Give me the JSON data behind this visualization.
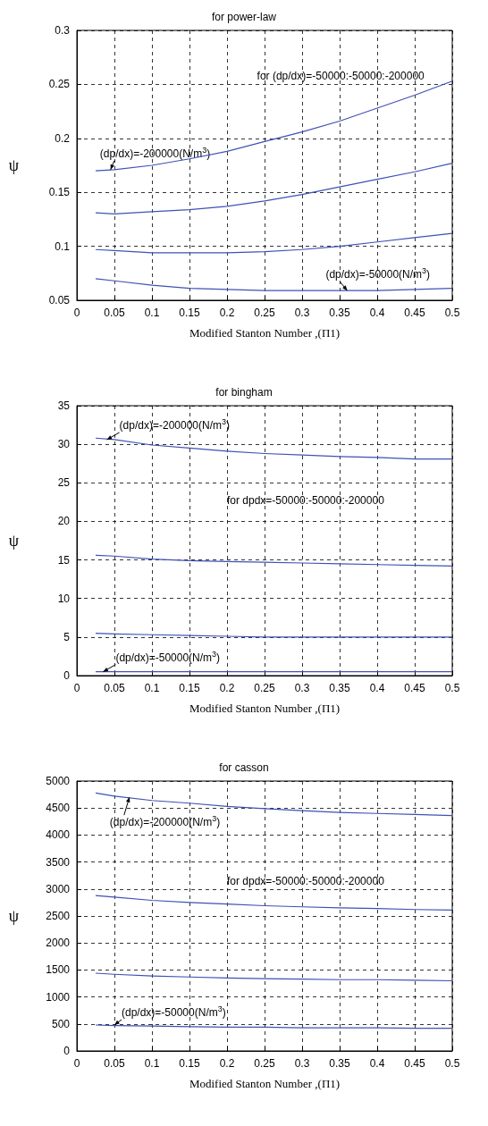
{
  "chart_data": [
    {
      "type": "line",
      "title": "for power-law",
      "xlabel": "Modified Stanton Number ,(Π1)",
      "ylabel": "ψ",
      "x": [
        0.025,
        0.05,
        0.1,
        0.15,
        0.2,
        0.25,
        0.3,
        0.35,
        0.4,
        0.45,
        0.5
      ],
      "xlim": [
        0,
        0.5
      ],
      "xticks": [
        0,
        0.05,
        0.1,
        0.15,
        0.2,
        0.25,
        0.3,
        0.35,
        0.4,
        0.45,
        0.5
      ],
      "ylim": [
        0.05,
        0.3
      ],
      "yticks": [
        0.05,
        0.1,
        0.15,
        0.2,
        0.25,
        0.3
      ],
      "grid": true,
      "line_style": "solid",
      "marker": "none",
      "series": [
        {
          "color": "#3f51b5",
          "values": [
            0.17,
            0.171,
            0.175,
            0.181,
            0.188,
            0.197,
            0.206,
            0.216,
            0.228,
            0.24,
            0.253
          ]
        },
        {
          "color": "#3f51b5",
          "values": [
            0.131,
            0.13,
            0.132,
            0.134,
            0.137,
            0.142,
            0.148,
            0.155,
            0.162,
            0.169,
            0.177
          ]
        },
        {
          "color": "#3f51b5",
          "values": [
            0.097,
            0.096,
            0.094,
            0.094,
            0.094,
            0.095,
            0.097,
            0.1,
            0.104,
            0.108,
            0.112
          ]
        },
        {
          "color": "#3f51b5",
          "values": [
            0.07,
            0.068,
            0.064,
            0.061,
            0.06,
            0.059,
            0.059,
            0.059,
            0.059,
            0.06,
            0.061
          ]
        }
      ],
      "annotations": [
        "for (dp/dx)=-50000:-50000:-200000",
        {
          "text": "(dp/dx)=-200000(N/m$^{3}$)",
          "x": 0.045,
          "y": 0.171
        },
        {
          "text": "(dp/dx)=-50000(N/m$^{3}$)",
          "x": 0.36,
          "y": 0.059
        }
      ]
    },
    {
      "type": "line",
      "title": "for bingham",
      "xlabel": "Modified Stanton Number ,(Π1)",
      "ylabel": "ψ",
      "x": [
        0.025,
        0.05,
        0.1,
        0.15,
        0.2,
        0.25,
        0.3,
        0.35,
        0.4,
        0.45,
        0.5
      ],
      "xlim": [
        0,
        0.5
      ],
      "xticks": [
        0,
        0.05,
        0.1,
        0.15,
        0.2,
        0.25,
        0.3,
        0.35,
        0.4,
        0.45,
        0.5
      ],
      "ylim": [
        0,
        35
      ],
      "yticks": [
        0,
        5,
        10,
        15,
        20,
        25,
        30,
        35
      ],
      "grid": true,
      "line_style": "solid",
      "marker": "none",
      "series": [
        {
          "color": "#3f51b5",
          "values": [
            30.8,
            30.6,
            29.9,
            29.5,
            29.1,
            28.8,
            28.6,
            28.4,
            28.3,
            28.1,
            28.1
          ]
        },
        {
          "color": "#3f51b5",
          "values": [
            15.6,
            15.5,
            15.1,
            14.9,
            14.8,
            14.7,
            14.6,
            14.5,
            14.4,
            14.3,
            14.2
          ]
        },
        {
          "color": "#3f51b5",
          "values": [
            5.5,
            5.4,
            5.3,
            5.2,
            5.1,
            5.0,
            5.0,
            5.0,
            5.0,
            5.0,
            5.0
          ]
        },
        {
          "color": "#3f51b5",
          "values": [
            0.5,
            0.5,
            0.5,
            0.5,
            0.5,
            0.5,
            0.5,
            0.5,
            0.5,
            0.5,
            0.5
          ]
        }
      ],
      "annotations": [
        "for dpdx=-50000:-50000:-200000",
        {
          "text": "(dp/dx)=-200000(N/m$^{3}$)",
          "x": 0.04,
          "y": 30.6
        },
        {
          "text": "(dp/dx)=-50000(N/m$^{3}$)",
          "x": 0.035,
          "y": 0.5
        }
      ]
    },
    {
      "type": "line",
      "title": "for casson",
      "xlabel": "Modified Stanton Number ,(Π1)",
      "ylabel": "ψ",
      "x": [
        0.025,
        0.05,
        0.1,
        0.15,
        0.2,
        0.25,
        0.3,
        0.35,
        0.4,
        0.45,
        0.5
      ],
      "xlim": [
        0,
        0.5
      ],
      "xticks": [
        0,
        0.05,
        0.1,
        0.15,
        0.2,
        0.25,
        0.3,
        0.35,
        0.4,
        0.45,
        0.5
      ],
      "ylim": [
        0,
        5000
      ],
      "yticks": [
        0,
        500,
        1000,
        1500,
        2000,
        2500,
        3000,
        3500,
        4000,
        4500,
        5000
      ],
      "grid": true,
      "line_style": "solid",
      "marker": "none",
      "series": [
        {
          "color": "#3f51b5",
          "values": [
            4780,
            4720,
            4640,
            4590,
            4530,
            4490,
            4450,
            4420,
            4400,
            4380,
            4360
          ]
        },
        {
          "color": "#3f51b5",
          "values": [
            2880,
            2850,
            2790,
            2750,
            2720,
            2690,
            2670,
            2650,
            2640,
            2620,
            2610
          ]
        },
        {
          "color": "#3f51b5",
          "values": [
            1440,
            1420,
            1390,
            1370,
            1350,
            1340,
            1330,
            1320,
            1320,
            1310,
            1300
          ]
        },
        {
          "color": "#3f51b5",
          "values": [
            480,
            470,
            460,
            450,
            440,
            440,
            430,
            430,
            430,
            420,
            420
          ]
        }
      ],
      "annotations": [
        "for dpdx=-50000:-50000:-200000",
        {
          "text": "(dp/dx)=-200000(N/m$^{3}$)",
          "x": 0.07,
          "y": 4700
        },
        {
          "text": "(dp/dx)=-50000(N/m$^{3}$)",
          "x": 0.05,
          "y": 480
        }
      ]
    }
  ]
}
